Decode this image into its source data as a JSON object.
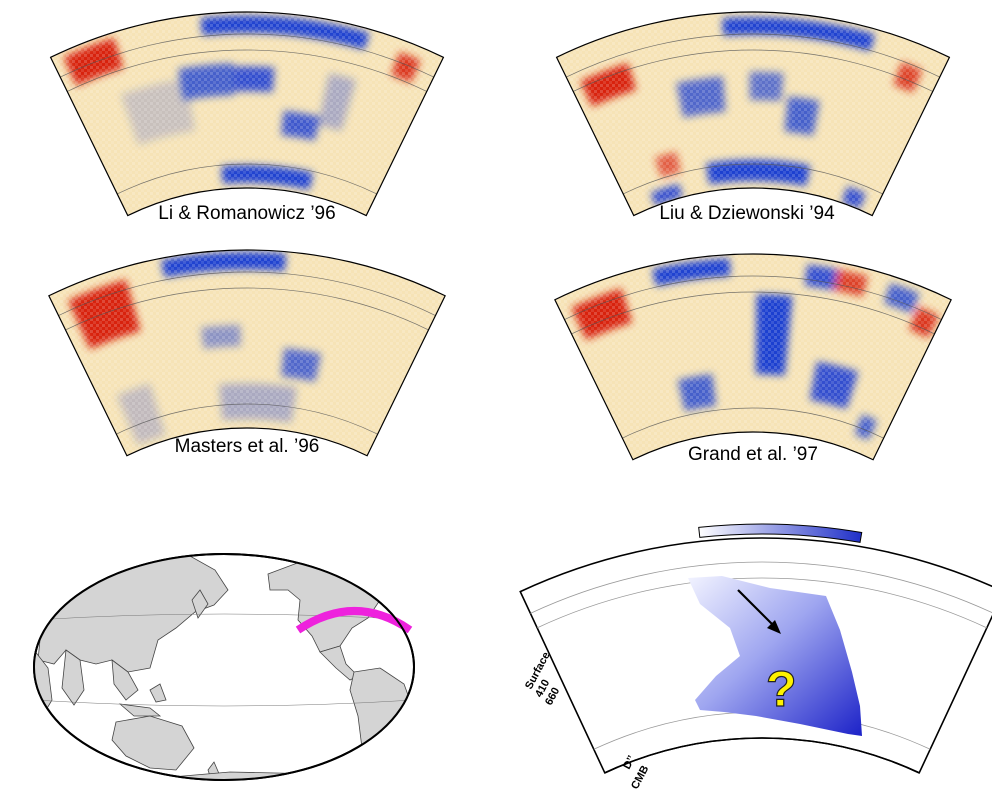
{
  "panels": [
    {
      "id": "li",
      "label": "Li & Romanowicz ’96"
    },
    {
      "id": "liu",
      "label": "Liu & Dziewonski ’94"
    },
    {
      "id": "masters",
      "label": "Masters et al. ’96"
    },
    {
      "id": "grand",
      "label": "Grand et al. ’97"
    }
  ],
  "map": {
    "path_color": "#ee22dd",
    "land_color": "#d4d4d4"
  },
  "schematic": {
    "depth_labels": [
      "Surface",
      "410",
      "660",
      "D’’",
      "CMB"
    ],
    "question": "?",
    "slab_color": "#2a3ad8"
  },
  "colors": {
    "fast": "#1d3fd0",
    "slow": "#d8230f",
    "neutral": "#f6efd6"
  }
}
